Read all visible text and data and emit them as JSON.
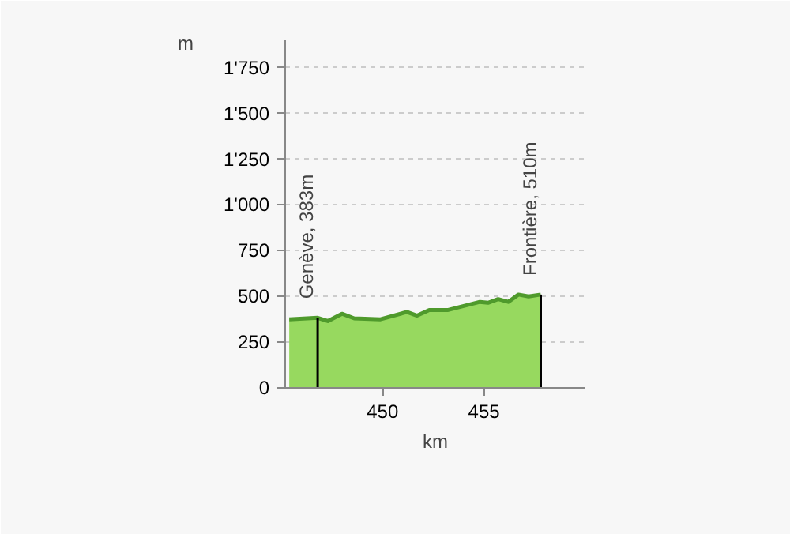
{
  "chart_data": {
    "type": "area",
    "xlabel": "km",
    "ylabel": "m",
    "x": [
      445.4,
      446.8,
      447.3,
      448.0,
      448.6,
      449.9,
      451.2,
      451.7,
      452.3,
      453.2,
      454.8,
      455.2,
      455.7,
      456.2,
      456.7,
      457.2,
      457.8
    ],
    "series": [
      {
        "color": "#4f9a2c",
        "values": [
          375,
          383,
          365,
          405,
          380,
          375,
          415,
          395,
          425,
          425,
          470,
          465,
          485,
          470,
          510,
          500,
          510
        ]
      }
    ],
    "xlim": [
      445.2,
      460
    ],
    "xticks": [
      450,
      455
    ],
    "ylim": [
      0,
      1900
    ],
    "yticks": [
      0,
      250,
      500,
      750,
      {
        "value": 1000,
        "label": "1'000"
      },
      {
        "value": 1250,
        "label": "1'250"
      },
      {
        "value": 1500,
        "label": "1'500"
      },
      {
        "value": 1750,
        "label": "1'750"
      }
    ],
    "ref_lines": [
      {
        "axis": "x",
        "value": 446.8,
        "label": "Genève, 383m",
        "color": "#000000"
      },
      {
        "axis": "x",
        "value": 457.8,
        "label": "Frontière, 510m",
        "color": "#000000"
      }
    ],
    "grid": "y"
  }
}
